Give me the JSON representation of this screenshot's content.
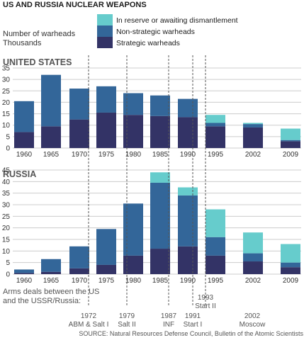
{
  "title": "US AND RUSSIA NUCLEAR WEAPONS",
  "ylabel_line1": "Number of warheads",
  "ylabel_line2": "Thousands",
  "legend": [
    {
      "label": "In reserve or awaiting dismantlement",
      "color": "#66cccc"
    },
    {
      "label": "Non-strategic warheads",
      "color": "#336699"
    },
    {
      "label": "Strategic warheads",
      "color": "#333366"
    }
  ],
  "colors": {
    "reserve": "#66cccc",
    "nonstrategic": "#336699",
    "strategic": "#333366",
    "grid": "#cccccc",
    "deal_line": "#555555"
  },
  "chart_data": [
    {
      "type": "bar",
      "stacked": true,
      "title": "UNITED STATES",
      "categories": [
        "1960",
        "1965",
        "1970",
        "1975",
        "1980",
        "1985",
        "1990",
        "1995",
        "2002",
        "2009"
      ],
      "ylim": [
        0,
        35
      ],
      "yticks": [
        0,
        5,
        10,
        15,
        20,
        25,
        30,
        35
      ],
      "grid": true,
      "series": [
        {
          "name": "Strategic warheads",
          "values": [
            7,
            9.5,
            12.5,
            15.5,
            14.5,
            14,
            13.5,
            9.5,
            9,
            3
          ]
        },
        {
          "name": "Non-strategic warheads",
          "values": [
            13.5,
            22.5,
            13.5,
            11.5,
            9.5,
            9,
            8,
            1.5,
            1.5,
            0.5
          ]
        },
        {
          "name": "In reserve or awaiting dismantlement",
          "values": [
            0,
            0,
            0,
            0,
            0,
            0,
            0,
            3.5,
            0.5,
            5
          ]
        }
      ]
    },
    {
      "type": "bar",
      "stacked": true,
      "title": "RUSSIA",
      "categories": [
        "1960",
        "1965",
        "1970",
        "1975",
        "1980",
        "1985",
        "1990",
        "1995",
        "2002",
        "2009"
      ],
      "ylim": [
        0,
        45
      ],
      "yticks": [
        0,
        5,
        10,
        15,
        20,
        25,
        30,
        35,
        40,
        45
      ],
      "grid": true,
      "series": [
        {
          "name": "Strategic warheads",
          "values": [
            0.5,
            1,
            2.5,
            4,
            8,
            11,
            12,
            8,
            5.5,
            3
          ]
        },
        {
          "name": "Non-strategic warheads",
          "values": [
            1.5,
            5.5,
            9.5,
            15.5,
            22.5,
            28.5,
            22,
            8,
            3.5,
            2
          ]
        },
        {
          "name": "In reserve or awaiting dismantlement",
          "values": [
            0,
            0,
            0,
            0,
            0,
            4.5,
            3.5,
            12,
            9,
            8
          ]
        }
      ]
    }
  ],
  "arms_deals": {
    "heading_line1": "Arms deals between the US",
    "heading_line2": "and the USSR/Russia:",
    "deals": [
      {
        "year": "1972",
        "name": "ABM & Salt I"
      },
      {
        "year": "1979",
        "name": "Salt II"
      },
      {
        "year": "1987",
        "name": "INF"
      },
      {
        "year": "1991",
        "name": "Start I"
      },
      {
        "year": "1993",
        "name": "Start II"
      },
      {
        "year": "2002",
        "name": "Moscow"
      }
    ]
  },
  "source": "SOURCE: Natural Resources Defense Council, Bulletin of the Atomic Scientists"
}
